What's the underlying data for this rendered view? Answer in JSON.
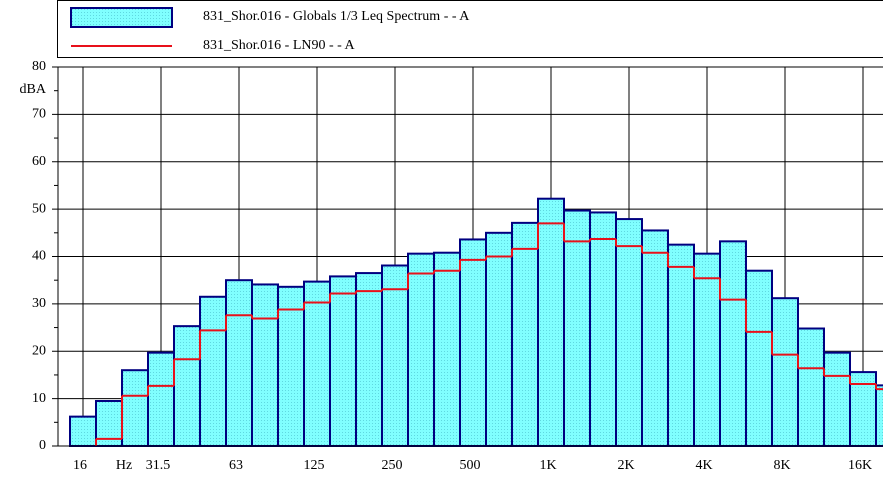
{
  "chart_data": {
    "type": "bar",
    "x_label": "Hz",
    "y_label": "dBA",
    "categories": [
      "16",
      null,
      null,
      "31.5",
      null,
      null,
      "63",
      null,
      null,
      "125",
      null,
      null,
      "250",
      null,
      null,
      "500",
      null,
      null,
      "1K",
      null,
      null,
      "2K",
      null,
      null,
      "4K",
      null,
      null,
      "8K",
      null,
      null,
      "16K",
      null
    ],
    "series": [
      {
        "name": "831_Shor.016 - Globals 1/3 Leq Spectrum -  - A",
        "type": "bar",
        "color": "#80ffff",
        "edge_color": "#000080",
        "values": [
          6.2,
          9.5,
          16,
          19.7,
          25.3,
          31.5,
          35,
          34.1,
          33.6,
          34.7,
          35.8,
          36.5,
          38.1,
          40.6,
          40.8,
          43.6,
          45,
          47.1,
          52.2,
          49.7,
          49.3,
          47.9,
          45.5,
          42.5,
          40.6,
          43.2,
          37,
          31.2,
          24.8,
          19.7,
          15.6,
          12.8
        ]
      },
      {
        "name": "831_Shor.016 - LN90 -  - A",
        "type": "step",
        "color": "#e8101a",
        "values": [
          null,
          1.5,
          10.6,
          12.7,
          18.3,
          24.4,
          27.6,
          26.9,
          28.8,
          30.3,
          32.2,
          32.7,
          33.1,
          36.4,
          37,
          39.3,
          40,
          41.6,
          47,
          43.2,
          43.7,
          42.2,
          40.8,
          37.8,
          35.4,
          30.9,
          24.1,
          19.3,
          16.4,
          14.8,
          13.1,
          12
        ]
      }
    ],
    "ylim": [
      0,
      80
    ],
    "yticks": [
      0,
      10,
      20,
      30,
      40,
      50,
      60,
      70,
      80
    ],
    "grid": true
  }
}
